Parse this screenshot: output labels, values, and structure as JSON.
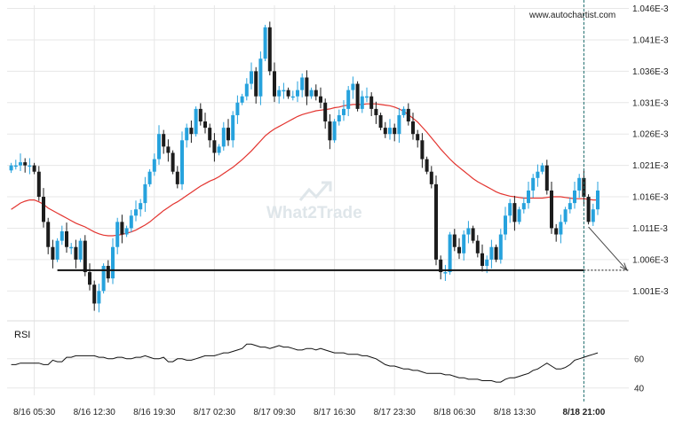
{
  "source_label": "www.autochartist.com",
  "watermark": "What2Trade",
  "colors": {
    "up_candle": "#26a2dd",
    "down_candle": "#1c1c1c",
    "moving_average": "#e3342f",
    "support_line": "#111111",
    "time_marker": "#1e6f6f",
    "rsi_line": "#111111",
    "grid": "#e7e7e7",
    "watermark": "#dfe6ea"
  },
  "chart_data": [
    {
      "type": "candlestick",
      "instrument_panel": "price",
      "y_ticks": [
        "1.046E-3",
        "1.041E-3",
        "1.036E-3",
        "1.031E-3",
        "1.026E-3",
        "1.021E-3",
        "1.016E-3",
        "1.011E-3",
        "1.006E-3",
        "1.001E-3"
      ],
      "y_tick_values": [
        0.001046,
        0.001041,
        0.001036,
        0.001031,
        0.001026,
        0.001021,
        0.001016,
        0.001011,
        0.001006,
        0.001001
      ],
      "ylim": [
        0.0009985,
        0.0010465
      ],
      "x_ticks": [
        "8/16 05:30",
        "8/16 12:30",
        "8/16 19:30",
        "8/17 02:30",
        "8/17 09:30",
        "8/17 16:30",
        "8/17 23:30",
        "8/18 06:30",
        "8/18 13:30",
        "8/18 21:00"
      ],
      "x_tick_index": [
        5,
        18,
        31,
        44,
        57,
        70,
        83,
        96,
        109,
        124
      ],
      "candle_count": 128,
      "closes": [
        1.021,
        1.021,
        1.0215,
        1.021,
        1.021,
        1.02,
        1.016,
        1.012,
        1.008,
        1.006,
        1.009,
        1.0105,
        1.008,
        1.008,
        1.006,
        1.009,
        1.004,
        1.002,
        0.999,
        1.001,
        1.005,
        1.003,
        1.008,
        1.012,
        1.01,
        1.011,
        1.013,
        1.014,
        1.015,
        1.018,
        1.02,
        1.022,
        1.026,
        1.024,
        1.023,
        1.02,
        1.018,
        1.025,
        1.027,
        1.026,
        1.03,
        1.028,
        1.027,
        1.025,
        1.023,
        1.024,
        1.027,
        1.025,
        1.029,
        1.031,
        1.032,
        1.034,
        1.036,
        1.032,
        1.038,
        1.043,
        1.036,
        1.032,
        1.033,
        1.033,
        1.032,
        1.032,
        1.033,
        1.035,
        1.032,
        1.033,
        1.032,
        1.031,
        1.028,
        1.025,
        1.028,
        1.029,
        1.03,
        1.033,
        1.034,
        1.03,
        1.032,
        1.032,
        1.03,
        1.029,
        1.027,
        1.026,
        1.027,
        1.026,
        1.029,
        1.03,
        1.028,
        1.026,
        1.025,
        1.022,
        1.02,
        1.018,
        1.006,
        1.004,
        1.004,
        1.01,
        1.008,
        1.007,
        1.01,
        1.011,
        1.009,
        1.007,
        1.005,
        1.006,
        1.008,
        1.006,
        1.01,
        1.013,
        1.015,
        1.012,
        1.014,
        1.015,
        1.017,
        1.019,
        1.02,
        1.021,
        1.017,
        1.011,
        1.01,
        1.012,
        1.014,
        1.015,
        1.017,
        1.019,
        1.016,
        1.012,
        1.014,
        1.017
      ],
      "moving_average_levels": [
        1.014,
        1.0145,
        1.015,
        1.0153,
        1.0155,
        1.0155,
        1.0152,
        1.0148,
        1.0142,
        1.0138,
        1.0134,
        1.013,
        1.0126,
        1.0122,
        1.0118,
        1.0115,
        1.0112,
        1.0108,
        1.0104,
        1.0101,
        1.0099,
        1.0098,
        1.0098,
        1.0099,
        1.01,
        1.0102,
        1.0104,
        1.0107,
        1.0111,
        1.0115,
        1.012,
        1.0126,
        1.0132,
        1.0138,
        1.0143,
        1.0148,
        1.0152,
        1.0157,
        1.0162,
        1.0167,
        1.0172,
        1.0177,
        1.0181,
        1.0185,
        1.0188,
        1.0192,
        1.0197,
        1.0202,
        1.0207,
        1.0213,
        1.0219,
        1.0226,
        1.0233,
        1.0241,
        1.0249,
        1.0257,
        1.0263,
        1.0268,
        1.0272,
        1.0276,
        1.028,
        1.0284,
        1.0288,
        1.0291,
        1.0293,
        1.0295,
        1.0297,
        1.0298,
        1.0299,
        1.03,
        1.0302,
        1.0303,
        1.0305,
        1.0306,
        1.0307,
        1.0307,
        1.0307,
        1.0308,
        1.0308,
        1.0308,
        1.0307,
        1.0306,
        1.0305,
        1.0303,
        1.03,
        1.0296,
        1.0291,
        1.0285,
        1.0279,
        1.0271,
        1.0263,
        1.0254,
        1.0245,
        1.0236,
        1.0228,
        1.022,
        1.0213,
        1.0207,
        1.0201,
        1.0195,
        1.0189,
        1.0184,
        1.018,
        1.0176,
        1.0172,
        1.0168,
        1.0165,
        1.0163,
        1.0161,
        1.016,
        1.0159,
        1.0158,
        1.0158,
        1.0158,
        1.0158,
        1.0158,
        1.0159,
        1.016,
        1.016,
        1.016,
        1.0159,
        1.0158,
        1.0157,
        1.0157,
        1.0157,
        1.0156,
        1.0155,
        1.0155
      ],
      "support_level": 1.0043,
      "projection_target": 1.0043
    },
    {
      "type": "line",
      "title": "RSI",
      "y_ticks": [
        "60",
        "40"
      ],
      "y_tick_values": [
        60,
        40
      ],
      "ylim": [
        35,
        75
      ],
      "values": [
        56,
        56,
        57,
        57,
        57,
        57,
        57,
        56,
        56,
        59,
        58,
        58,
        61,
        61,
        62,
        62,
        62,
        62,
        62,
        61,
        61,
        60,
        60,
        61,
        61,
        60,
        60,
        61,
        61,
        62,
        61,
        60,
        60,
        61,
        58,
        58,
        60,
        60,
        59,
        59,
        60,
        61,
        62,
        62,
        62,
        63,
        64,
        64,
        65,
        66,
        67,
        70,
        70,
        69,
        68,
        68,
        67,
        68,
        69,
        68,
        68,
        67,
        66,
        66,
        67,
        67,
        66,
        67,
        66,
        65,
        64,
        64,
        64,
        63,
        63,
        63,
        62,
        62,
        61,
        60,
        58,
        56,
        55,
        55,
        54,
        53,
        53,
        52,
        52,
        51,
        50,
        50,
        50,
        50,
        49,
        49,
        48,
        47,
        47,
        46,
        46,
        46,
        45,
        45,
        45,
        44,
        44,
        46,
        47,
        47,
        48,
        49,
        50,
        52,
        53,
        55,
        57,
        55,
        53,
        53,
        54,
        56,
        59,
        60,
        61,
        62,
        63,
        64
      ]
    }
  ]
}
